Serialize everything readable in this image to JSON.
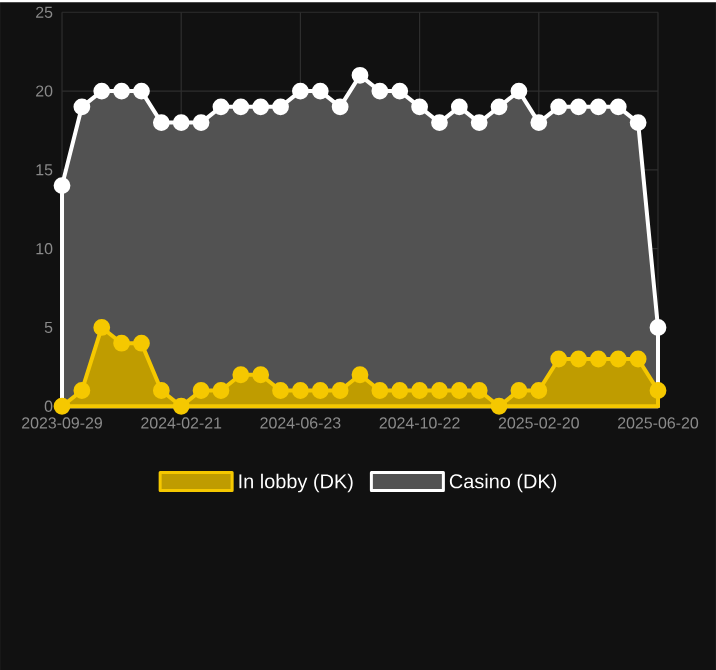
{
  "chart_data": {
    "type": "area",
    "categories": [
      "2023-09-29",
      null,
      null,
      null,
      null,
      null,
      "2024-02-21",
      null,
      null,
      null,
      null,
      null,
      "2024-06-23",
      null,
      null,
      null,
      null,
      null,
      "2024-10-22",
      null,
      null,
      null,
      null,
      null,
      "2025-02-20",
      null,
      null,
      null,
      null,
      null,
      "2025-06-20"
    ],
    "series": [
      {
        "name": "In lobby (DK)",
        "color": "#f5c800",
        "values": [
          0,
          1,
          5,
          4,
          4,
          1,
          0,
          1,
          1,
          2,
          2,
          1,
          1,
          1,
          1,
          2,
          1,
          1,
          1,
          1,
          1,
          1,
          0,
          1,
          1,
          3,
          3,
          3,
          3,
          3,
          1
        ]
      },
      {
        "name": "Casino (DK)",
        "color": "#ffffff",
        "values": [
          14,
          19,
          20,
          20,
          20,
          18,
          18,
          18,
          19,
          19,
          19,
          19,
          20,
          20,
          19,
          21,
          20,
          20,
          19,
          18,
          19,
          18,
          19,
          20,
          18,
          19,
          19,
          19,
          19,
          18,
          5
        ]
      }
    ],
    "ylim": [
      0,
      25
    ],
    "yticks": [
      0,
      5,
      10,
      15,
      20,
      25
    ],
    "grid": true,
    "legend": "bottom",
    "marker": "circle"
  }
}
